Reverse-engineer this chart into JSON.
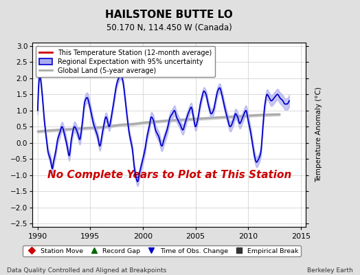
{
  "title": "HAILSTONE BUTTE LO",
  "subtitle": "50.170 N, 114.450 W (Canada)",
  "ylabel": "Temperature Anomaly (°C)",
  "xlabel_left": "Data Quality Controlled and Aligned at Breakpoints",
  "xlabel_right": "Berkeley Earth",
  "xlim": [
    1989.5,
    2015.5
  ],
  "ylim": [
    -2.6,
    3.1
  ],
  "yticks": [
    -2.5,
    -2,
    -1.5,
    -1,
    -0.5,
    0,
    0.5,
    1,
    1.5,
    2,
    2.5,
    3
  ],
  "xticks": [
    1990,
    1995,
    2000,
    2005,
    2010,
    2015
  ],
  "bg_color": "#e0e0e0",
  "plot_bg_color": "#ffffff",
  "grid_color": "#cccccc",
  "regional_color": "#0000cc",
  "regional_fill_color": "#aaaaee",
  "global_land_color": "#aaaaaa",
  "station_color": "#cc0000",
  "no_data_text": "No Complete Years to Plot at This Station",
  "no_data_color": "#cc0000",
  "legend_items": [
    {
      "label": "This Temperature Station (12-month average)",
      "color": "#cc0000",
      "type": "line"
    },
    {
      "label": "Regional Expectation with 95% uncertainty",
      "color": "#0000cc",
      "type": "fill"
    },
    {
      "label": "Global Land (5-year average)",
      "color": "#aaaaaa",
      "type": "line"
    }
  ],
  "bottom_legend": [
    {
      "label": "Station Move",
      "color": "#cc0000",
      "marker": "D"
    },
    {
      "label": "Record Gap",
      "color": "#006600",
      "marker": "^"
    },
    {
      "label": "Time of Obs. Change",
      "color": "#0000cc",
      "marker": "v"
    },
    {
      "label": "Empirical Break",
      "color": "#333333",
      "marker": "s"
    }
  ],
  "regional_t": [
    1990.0,
    1990.1,
    1990.2,
    1990.4,
    1990.6,
    1990.8,
    1991.0,
    1991.2,
    1991.4,
    1991.5,
    1991.7,
    1991.9,
    1992.1,
    1992.3,
    1992.6,
    1992.8,
    1993.0,
    1993.2,
    1993.5,
    1993.8,
    1994.0,
    1994.2,
    1994.5,
    1994.7,
    1994.9,
    1995.1,
    1995.3,
    1995.5,
    1995.7,
    1995.9,
    1996.2,
    1996.5,
    1996.8,
    1997.0,
    1997.2,
    1997.5,
    1997.7,
    1997.9,
    1998.1,
    1998.3,
    1998.5,
    1998.7,
    1999.0,
    1999.2,
    1999.5,
    1999.7,
    2000.0,
    2000.2,
    2000.4,
    2000.6,
    2000.8,
    2001.0,
    2001.2,
    2001.5,
    2001.8,
    2002.0,
    2002.3,
    2002.6,
    2002.8,
    2003.0,
    2003.2,
    2003.5,
    2003.8,
    2004.0,
    2004.3,
    2004.6,
    2004.8,
    2005.0,
    2005.2,
    2005.4,
    2005.6,
    2005.8,
    2006.0,
    2006.2,
    2006.5,
    2006.7,
    2006.9,
    2007.1,
    2007.3,
    2007.5,
    2007.7,
    2008.0,
    2008.3,
    2008.6,
    2008.8,
    2009.0,
    2009.2,
    2009.5,
    2009.8,
    2010.0,
    2010.2,
    2010.4,
    2010.6,
    2010.8,
    2011.0,
    2011.2,
    2011.4,
    2011.6,
    2011.8,
    2012.0,
    2012.2,
    2012.5,
    2012.8,
    2013.0,
    2013.3,
    2013.5,
    2013.7,
    2013.9
  ],
  "regional_y": [
    1.0,
    1.8,
    2.1,
    1.6,
    0.8,
    0.2,
    -0.3,
    -0.5,
    -0.8,
    -0.6,
    -0.3,
    0.1,
    0.3,
    0.5,
    0.2,
    -0.1,
    -0.4,
    0.1,
    0.5,
    0.3,
    0.1,
    0.5,
    1.3,
    1.4,
    1.2,
    0.9,
    0.6,
    0.4,
    0.2,
    -0.1,
    0.4,
    0.8,
    0.5,
    0.8,
    1.2,
    1.8,
    2.0,
    2.1,
    1.9,
    1.4,
    0.8,
    0.3,
    -0.2,
    -0.8,
    -1.2,
    -0.9,
    -0.5,
    -0.2,
    0.2,
    0.5,
    0.8,
    0.7,
    0.4,
    0.2,
    -0.1,
    0.1,
    0.4,
    0.8,
    0.9,
    1.0,
    0.8,
    0.6,
    0.4,
    0.6,
    0.9,
    1.1,
    0.8,
    0.5,
    0.7,
    1.1,
    1.4,
    1.6,
    1.5,
    1.2,
    0.9,
    1.0,
    1.3,
    1.6,
    1.7,
    1.5,
    1.2,
    0.8,
    0.5,
    0.7,
    0.9,
    0.8,
    0.6,
    0.8,
    1.0,
    0.7,
    0.4,
    0.0,
    -0.4,
    -0.6,
    -0.5,
    -0.3,
    0.5,
    1.2,
    1.5,
    1.4,
    1.3,
    1.4,
    1.5,
    1.4,
    1.3,
    1.2,
    1.2,
    1.3
  ],
  "global_t": [
    1990,
    1991,
    1992,
    1993,
    1994,
    1995,
    1996,
    1997,
    1998,
    1999,
    2000,
    2001,
    2002,
    2003,
    2004,
    2005,
    2006,
    2007,
    2008,
    2009,
    2010,
    2011,
    2012,
    2013
  ],
  "global_y": [
    0.35,
    0.38,
    0.4,
    0.42,
    0.44,
    0.46,
    0.48,
    0.52,
    0.56,
    0.58,
    0.62,
    0.65,
    0.68,
    0.7,
    0.72,
    0.74,
    0.76,
    0.78,
    0.8,
    0.82,
    0.84,
    0.86,
    0.87,
    0.88
  ]
}
